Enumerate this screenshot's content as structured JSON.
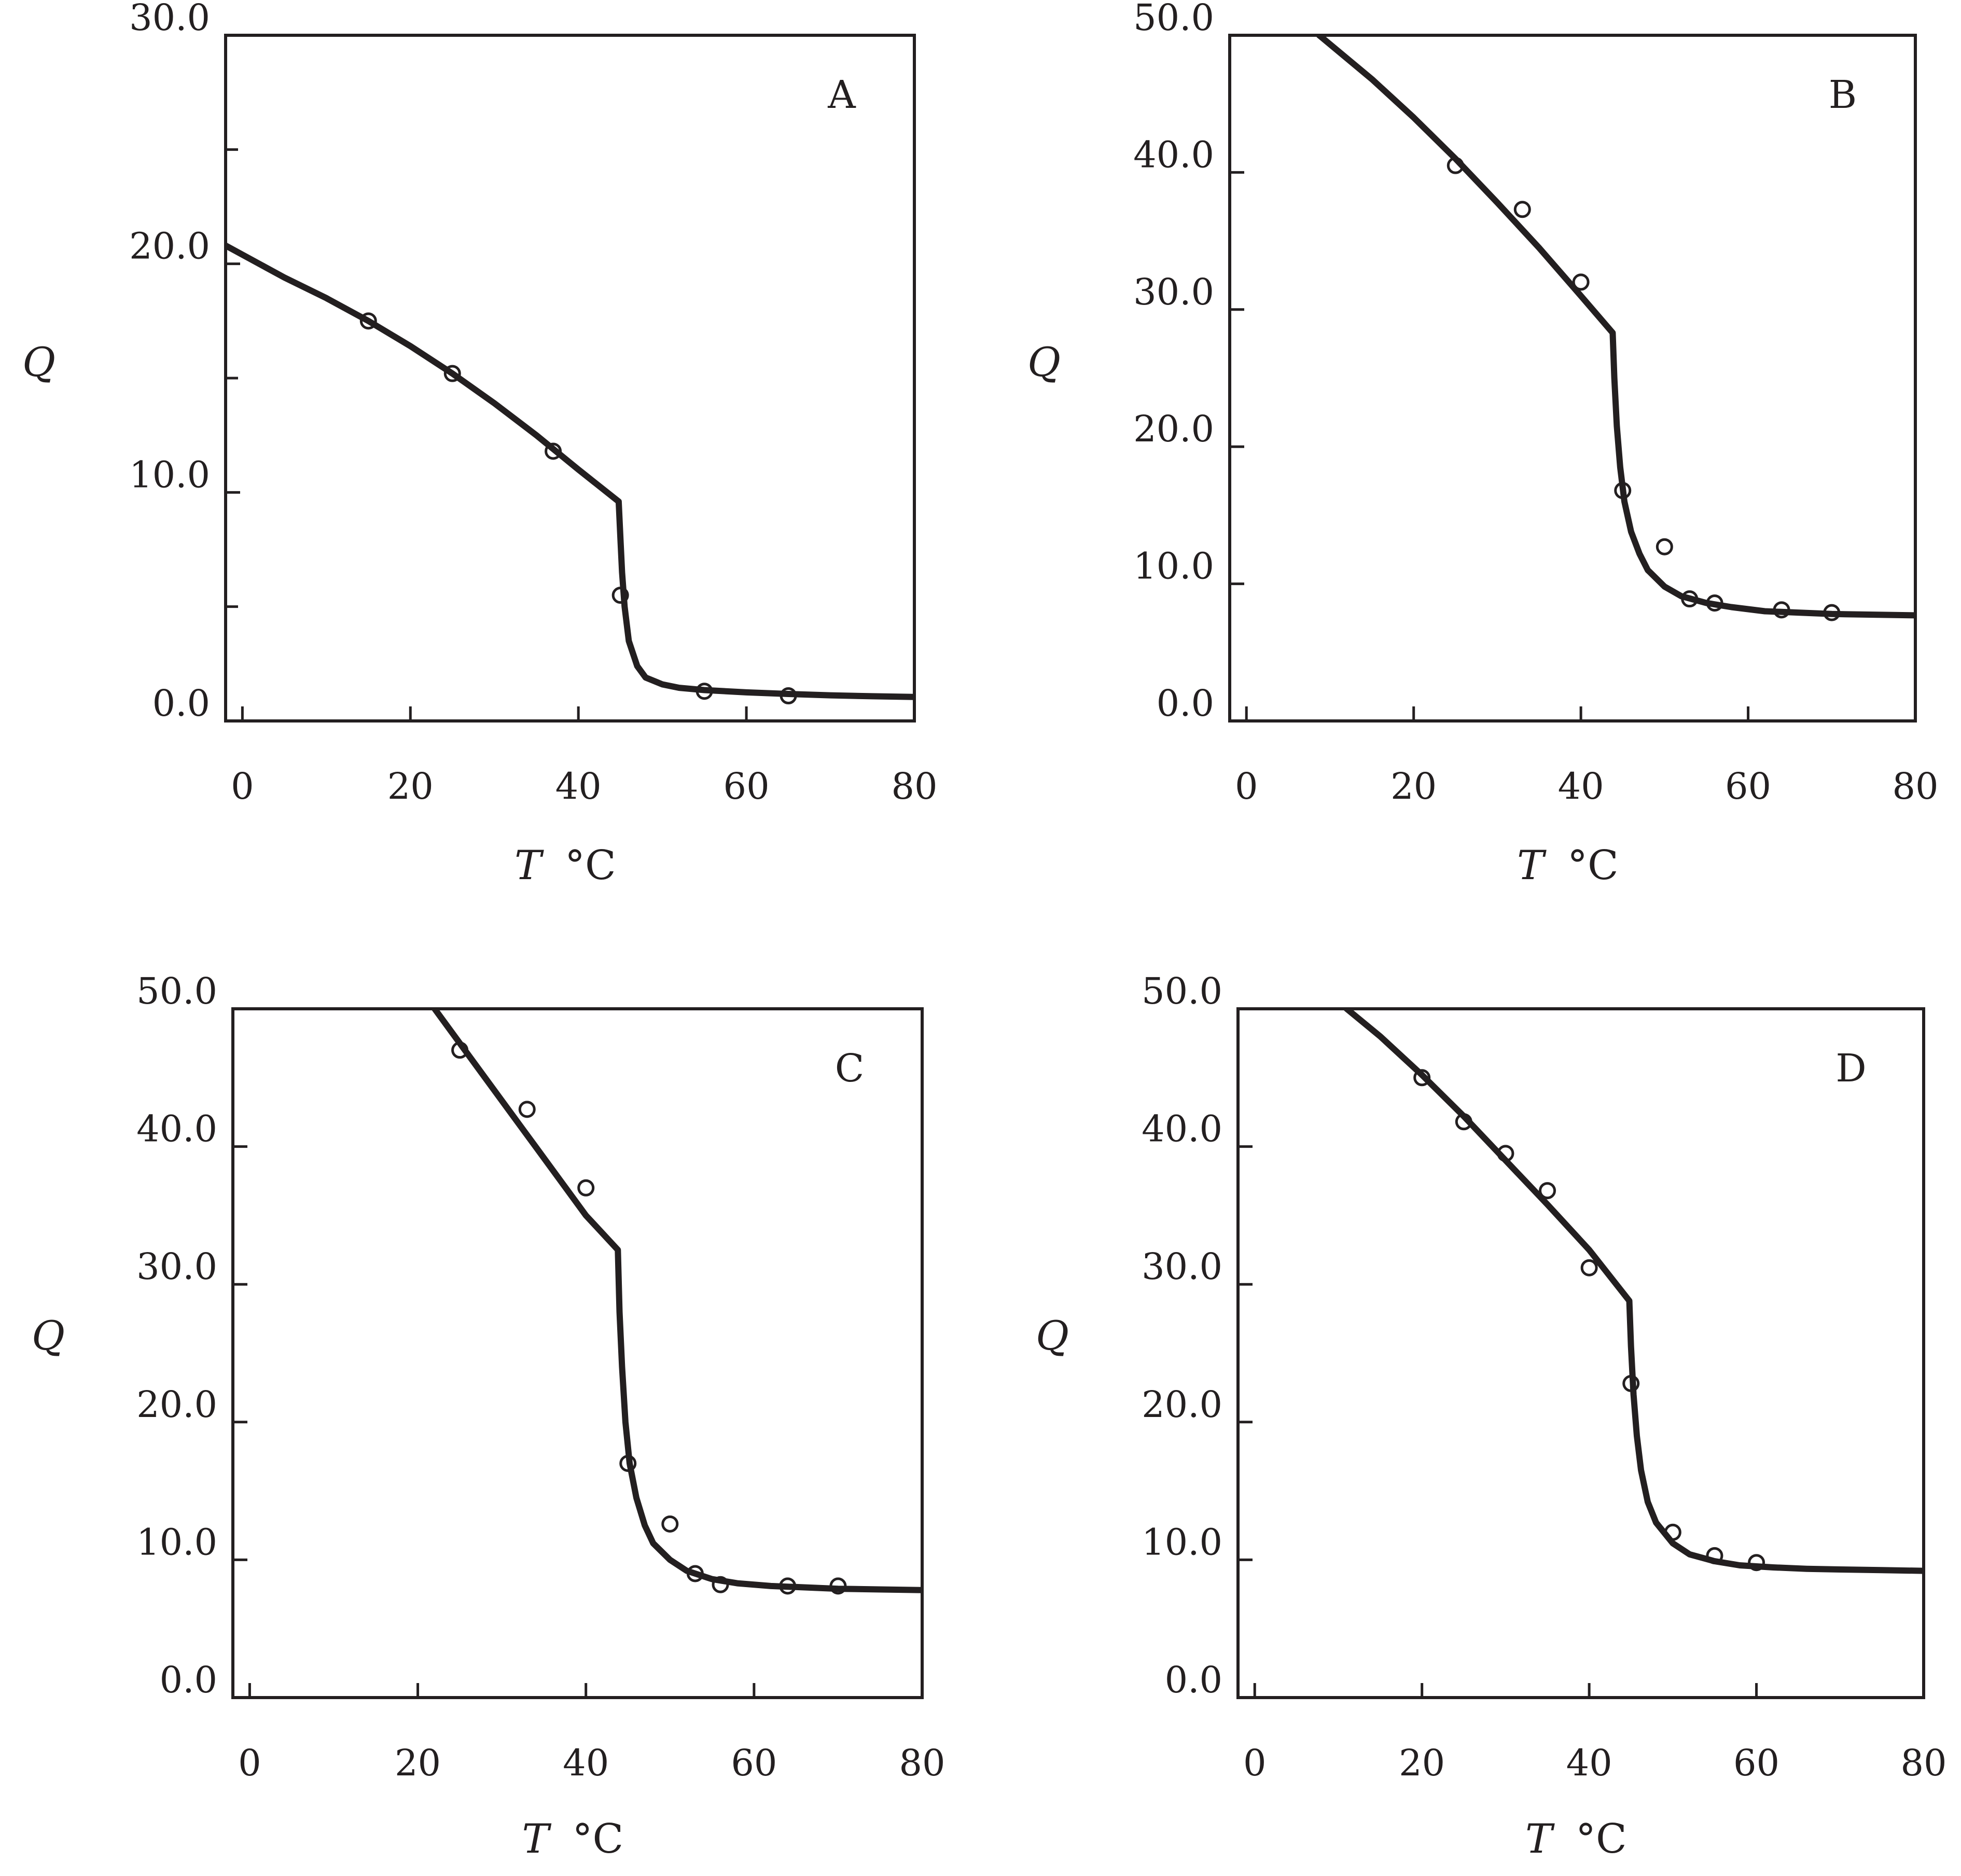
{
  "chart_data": [
    {
      "type": "scatter",
      "panel_label": "A",
      "xlabel": "T",
      "xunit": "°C",
      "ylabel": "Q",
      "xlim": [
        -2,
        80
      ],
      "ylim": [
        0,
        30
      ],
      "x_ticks": [
        0,
        20,
        40,
        60,
        80
      ],
      "y_ticks": [
        0.0,
        10.0,
        20.0,
        30.0
      ],
      "y_tick_labels": [
        "0.0",
        "10.0",
        "20.0",
        "30.0"
      ],
      "y_minor_ticks": [
        5,
        15,
        25
      ],
      "points": {
        "x": [
          15,
          25,
          37,
          45,
          55,
          65
        ],
        "y": [
          17.5,
          15.2,
          11.8,
          5.5,
          1.3,
          1.1
        ]
      },
      "curve": {
        "x": [
          -2,
          5,
          10,
          15,
          20,
          25,
          30,
          35,
          40,
          44.8,
          45.0,
          45.2,
          45.5,
          46,
          47,
          48,
          50,
          52,
          55,
          60,
          65,
          70,
          75,
          80
        ],
        "y": [
          20.8,
          19.4,
          18.5,
          17.5,
          16.4,
          15.2,
          13.9,
          12.5,
          11.0,
          9.6,
          8.0,
          6.5,
          5.0,
          3.5,
          2.4,
          1.9,
          1.6,
          1.45,
          1.35,
          1.25,
          1.18,
          1.12,
          1.08,
          1.05
        ]
      }
    },
    {
      "type": "scatter",
      "panel_label": "B",
      "xlabel": "T",
      "xunit": "°C",
      "ylabel": "Q",
      "xlim": [
        -2,
        80
      ],
      "ylim": [
        0,
        50
      ],
      "x_ticks": [
        0,
        20,
        40,
        60,
        80
      ],
      "y_ticks": [
        0.0,
        10.0,
        20.0,
        30.0,
        40.0,
        50.0
      ],
      "y_tick_labels": [
        "0.0",
        "10.0",
        "20.0",
        "30.0",
        "40.0",
        "50.0"
      ],
      "y_minor_ticks": [],
      "points": {
        "x": [
          25,
          33,
          40,
          45,
          50,
          53,
          56,
          64,
          70
        ],
        "y": [
          40.5,
          37.3,
          32.0,
          16.8,
          12.7,
          8.9,
          8.6,
          8.1,
          7.9
        ]
      },
      "curve": {
        "x": [
          8.7,
          15,
          20,
          25,
          30,
          35,
          40,
          43.8,
          44.0,
          44.3,
          44.7,
          45.2,
          46,
          47,
          48,
          50,
          52,
          55,
          58,
          62,
          66,
          70,
          75,
          80
        ],
        "y": [
          50.0,
          46.8,
          44.0,
          41.0,
          37.8,
          34.5,
          31.0,
          28.3,
          25.0,
          21.5,
          18.5,
          16.0,
          13.8,
          12.2,
          11.0,
          9.8,
          9.1,
          8.6,
          8.3,
          8.0,
          7.9,
          7.8,
          7.75,
          7.7
        ]
      }
    },
    {
      "type": "scatter",
      "panel_label": "C",
      "xlabel": "T",
      "xunit": "°C",
      "ylabel": "Q",
      "xlim": [
        -2,
        80
      ],
      "ylim": [
        0,
        50
      ],
      "x_ticks": [
        0,
        20,
        40,
        60,
        80
      ],
      "y_ticks": [
        0.0,
        10.0,
        20.0,
        30.0,
        40.0,
        50.0
      ],
      "y_tick_labels": [
        "0.0",
        "10.0",
        "20.0",
        "30.0",
        "40.0",
        "50.0"
      ],
      "y_minor_ticks": [],
      "points": {
        "x": [
          25,
          33,
          40,
          45,
          50,
          53,
          56,
          64,
          70
        ],
        "y": [
          47.0,
          42.7,
          37.0,
          17.0,
          12.6,
          9.0,
          8.2,
          8.1,
          8.1
        ]
      },
      "curve": {
        "x": [
          22,
          25,
          28,
          31,
          34,
          37,
          40,
          43.8,
          44.0,
          44.3,
          44.7,
          45.2,
          46,
          47,
          48,
          50,
          52,
          55,
          58,
          62,
          66,
          70,
          75,
          80
        ],
        "y": [
          50.0,
          47.5,
          45.0,
          42.5,
          40.0,
          37.5,
          35.0,
          32.5,
          28.0,
          24.0,
          20.0,
          17.0,
          14.5,
          12.5,
          11.2,
          10.0,
          9.2,
          8.6,
          8.3,
          8.1,
          8.0,
          7.9,
          7.85,
          7.8
        ]
      }
    },
    {
      "type": "scatter",
      "panel_label": "D",
      "xlabel": "T",
      "xunit": "°C",
      "ylabel": "Q",
      "xlim": [
        -2,
        80
      ],
      "ylim": [
        0,
        50
      ],
      "x_ticks": [
        0,
        20,
        40,
        60,
        80
      ],
      "y_ticks": [
        0.0,
        10.0,
        20.0,
        30.0,
        40.0,
        50.0
      ],
      "y_tick_labels": [
        "0.0",
        "10.0",
        "20.0",
        "30.0",
        "40.0",
        "50.0"
      ],
      "y_minor_ticks": [],
      "points": {
        "x": [
          20,
          25,
          30,
          35,
          40,
          45,
          50,
          55,
          60
        ],
        "y": [
          45.0,
          41.8,
          39.5,
          36.8,
          31.2,
          22.8,
          12.0,
          10.3,
          9.8
        ]
      },
      "curve": {
        "x": [
          11,
          15,
          20,
          25,
          30,
          35,
          40,
          44.8,
          45.0,
          45.3,
          45.7,
          46.2,
          47,
          48,
          50,
          52,
          55,
          58,
          62,
          66,
          70,
          75,
          80
        ],
        "y": [
          50.0,
          48.0,
          45.2,
          42.2,
          39.0,
          35.8,
          32.5,
          28.8,
          25.5,
          22.0,
          19.0,
          16.5,
          14.2,
          12.7,
          11.2,
          10.4,
          9.9,
          9.6,
          9.45,
          9.35,
          9.3,
          9.25,
          9.2
        ]
      }
    }
  ]
}
